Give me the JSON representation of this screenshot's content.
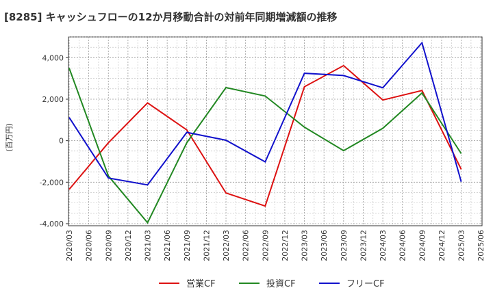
{
  "chart_data": {
    "type": "line",
    "title": "[8285]  キャッシュフローの12か月移動合計の対前年同期増減額の推移",
    "ylabel": "(百万円)",
    "xlabel": "",
    "ylim": [
      -4100,
      5000
    ],
    "yticks": [
      -4000,
      -2000,
      0,
      2000,
      4000
    ],
    "ytick_labels": [
      "-4,000",
      "-2,000",
      "0",
      "2,000",
      "4,000"
    ],
    "grid": true,
    "legend_position": "bottom",
    "x_labels": [
      "2020/03",
      "2020/06",
      "2020/09",
      "2020/12",
      "2021/03",
      "2021/06",
      "2021/09",
      "2021/12",
      "2022/03",
      "2022/06",
      "2022/09",
      "2022/12",
      "2023/03",
      "2023/06",
      "2023/09",
      "2023/12",
      "2024/03",
      "2024/06",
      "2024/09",
      "2024/12",
      "2025/03",
      "2025/06"
    ],
    "series": [
      {
        "name": "営業CF",
        "color": "#dd1111",
        "points": [
          {
            "x": "2020/03",
            "y": -2350
          },
          {
            "x": "2020/09",
            "y": -100
          },
          {
            "x": "2021/03",
            "y": 1820
          },
          {
            "x": "2021/09",
            "y": 520
          },
          {
            "x": "2022/03",
            "y": -2520
          },
          {
            "x": "2022/09",
            "y": -3150
          },
          {
            "x": "2023/03",
            "y": 2600
          },
          {
            "x": "2023/09",
            "y": 3620
          },
          {
            "x": "2024/03",
            "y": 1960
          },
          {
            "x": "2024/09",
            "y": 2420
          },
          {
            "x": "2025/03",
            "y": -1380
          }
        ]
      },
      {
        "name": "投資CF",
        "color": "#228822",
        "points": [
          {
            "x": "2020/03",
            "y": 3500
          },
          {
            "x": "2020/09",
            "y": -1700
          },
          {
            "x": "2021/03",
            "y": -3950
          },
          {
            "x": "2021/09",
            "y": -100
          },
          {
            "x": "2022/03",
            "y": 2560
          },
          {
            "x": "2022/09",
            "y": 2150
          },
          {
            "x": "2023/03",
            "y": 650
          },
          {
            "x": "2023/09",
            "y": -480
          },
          {
            "x": "2024/03",
            "y": 600
          },
          {
            "x": "2024/09",
            "y": 2300
          },
          {
            "x": "2025/03",
            "y": -620
          }
        ]
      },
      {
        "name": "フリーCF",
        "color": "#1111cc",
        "points": [
          {
            "x": "2020/03",
            "y": 1120
          },
          {
            "x": "2020/09",
            "y": -1800
          },
          {
            "x": "2021/03",
            "y": -2130
          },
          {
            "x": "2021/09",
            "y": 400
          },
          {
            "x": "2022/03",
            "y": 20
          },
          {
            "x": "2022/09",
            "y": -1020
          },
          {
            "x": "2023/03",
            "y": 3250
          },
          {
            "x": "2023/09",
            "y": 3140
          },
          {
            "x": "2024/03",
            "y": 2550
          },
          {
            "x": "2024/09",
            "y": 4720
          },
          {
            "x": "2025/03",
            "y": -1980
          }
        ]
      }
    ]
  }
}
